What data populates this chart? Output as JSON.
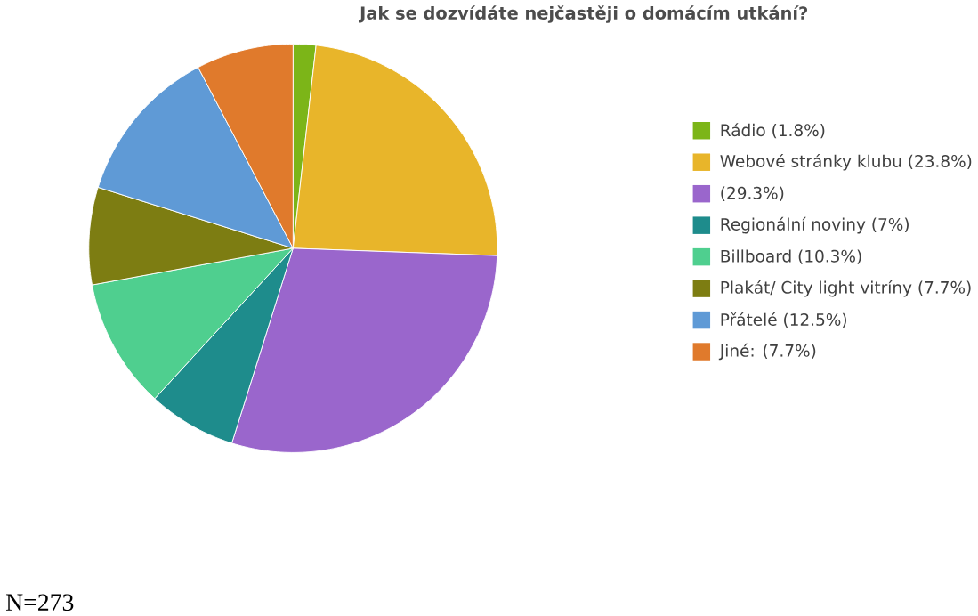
{
  "chart_data": {
    "type": "pie",
    "title": "Jak se dozvídáte nejčastěji o domácím utkání?",
    "categories": [
      "Rádio (1.8%)",
      "Webové stránky klubu (23.8%)",
      "(29.3%)",
      "Regionální noviny (7%)",
      "Billboard (10.3%)",
      "Plakát/ City light vitríny (7.7%)",
      "Přátelé (12.5%)",
      "Jiné: (7.7%)"
    ],
    "values": [
      1.8,
      23.8,
      29.3,
      7,
      10.3,
      7.7,
      12.5,
      7.7
    ],
    "colors": [
      "#7cb518",
      "#e8b52a",
      "#9a66cc",
      "#1e8c8c",
      "#4fcf8f",
      "#7d7d12",
      "#5f9ad6",
      "#e07a2c"
    ],
    "legend": "right",
    "annotations": [
      "N=273"
    ]
  }
}
